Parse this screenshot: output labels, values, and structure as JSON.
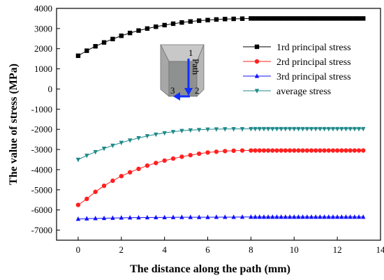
{
  "chart_data": {
    "type": "line",
    "xlabel": "The distance along the path (mm)",
    "ylabel": "The value of stress (MPa)",
    "xlim": [
      -1,
      14
    ],
    "ylim": [
      -7500,
      4000
    ],
    "xticks": [
      0,
      2,
      4,
      6,
      8,
      10,
      12,
      14
    ],
    "yticks": [
      4000,
      3000,
      2000,
      1000,
      0,
      -1000,
      -2000,
      -3000,
      -4000,
      -5000,
      -6000,
      -7000
    ],
    "grid": false,
    "legend_position": "top-right",
    "x": [
      0,
      0.4,
      0.8,
      1.2,
      1.6,
      2.0,
      2.4,
      2.8,
      3.2,
      3.6,
      4.0,
      4.4,
      4.8,
      5.2,
      5.6,
      6.0,
      6.4,
      6.8,
      7.2,
      7.6,
      8.0,
      8.2,
      8.4,
      8.6,
      8.8,
      9.0,
      9.2,
      9.4,
      9.6,
      9.8,
      10.0,
      10.2,
      10.4,
      10.6,
      10.8,
      11.0,
      11.2,
      11.4,
      11.6,
      11.8,
      12.0,
      12.2,
      12.4,
      12.6,
      12.8,
      13.0,
      13.2
    ],
    "series": [
      {
        "name": "1rd principal stress",
        "color": "#000000",
        "marker": "square",
        "values": [
          1650,
          1900,
          2120,
          2310,
          2480,
          2640,
          2780,
          2900,
          3000,
          3090,
          3170,
          3240,
          3300,
          3350,
          3390,
          3420,
          3450,
          3470,
          3480,
          3490,
          3500,
          3500,
          3500,
          3500,
          3500,
          3500,
          3500,
          3500,
          3500,
          3500,
          3500,
          3500,
          3500,
          3500,
          3500,
          3500,
          3500,
          3500,
          3500,
          3500,
          3500,
          3500,
          3500,
          3500,
          3500,
          3500,
          3500
        ]
      },
      {
        "name": "2rd principal stress",
        "color": "#ff2020",
        "marker": "circle",
        "values": [
          -5750,
          -5450,
          -5100,
          -4800,
          -4550,
          -4320,
          -4130,
          -3960,
          -3800,
          -3670,
          -3550,
          -3450,
          -3360,
          -3280,
          -3210,
          -3150,
          -3110,
          -3080,
          -3060,
          -3050,
          -3050,
          -3050,
          -3050,
          -3050,
          -3050,
          -3050,
          -3050,
          -3050,
          -3050,
          -3050,
          -3050,
          -3050,
          -3050,
          -3050,
          -3050,
          -3050,
          -3050,
          -3050,
          -3050,
          -3050,
          -3050,
          -3050,
          -3050,
          -3050,
          -3050,
          -3050,
          -3050
        ]
      },
      {
        "name": "3rd principal stress",
        "color": "#1010ff",
        "marker": "triangle-up",
        "values": [
          -6450,
          -6430,
          -6420,
          -6410,
          -6400,
          -6390,
          -6385,
          -6380,
          -6375,
          -6370,
          -6370,
          -6365,
          -6360,
          -6360,
          -6360,
          -6360,
          -6355,
          -6355,
          -6355,
          -6350,
          -6350,
          -6350,
          -6350,
          -6350,
          -6350,
          -6350,
          -6350,
          -6350,
          -6350,
          -6350,
          -6350,
          -6350,
          -6350,
          -6350,
          -6350,
          -6350,
          -6350,
          -6350,
          -6350,
          -6350,
          -6350,
          -6350,
          -6350,
          -6350,
          -6350,
          -6350,
          -6350
        ]
      },
      {
        "name": "average stress",
        "color": "#1f8a8a",
        "marker": "triangle-down",
        "values": [
          -3500,
          -3300,
          -3120,
          -2950,
          -2800,
          -2660,
          -2540,
          -2430,
          -2330,
          -2250,
          -2180,
          -2120,
          -2070,
          -2040,
          -2020,
          -2000,
          -1990,
          -1985,
          -1980,
          -1980,
          -1975,
          -1975,
          -1975,
          -1975,
          -1975,
          -1975,
          -1975,
          -1975,
          -1975,
          -1975,
          -1975,
          -1975,
          -1975,
          -1975,
          -1975,
          -1975,
          -1975,
          -1975,
          -1975,
          -1975,
          -1975,
          -1975,
          -1975,
          -1975,
          -1975,
          -1975,
          -1975
        ]
      }
    ],
    "inset": {
      "path_label": "Path",
      "point_labels": [
        "1",
        "2",
        "3"
      ]
    }
  }
}
